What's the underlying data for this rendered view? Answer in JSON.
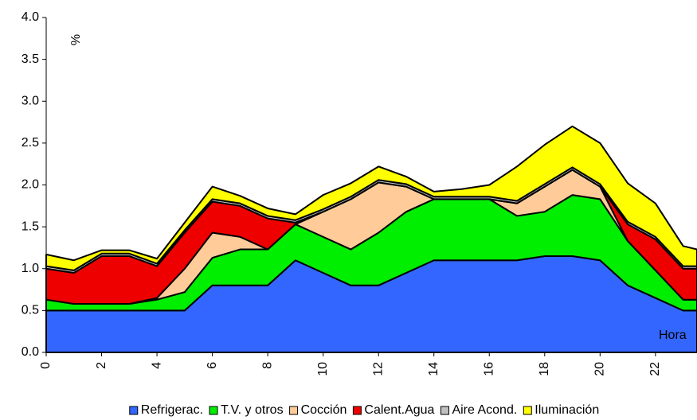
{
  "chart_data": {
    "type": "stacked-area",
    "x": [
      0,
      1,
      2,
      3,
      4,
      5,
      6,
      7,
      8,
      9,
      10,
      11,
      12,
      13,
      14,
      15,
      16,
      17,
      18,
      19,
      20,
      21,
      22,
      23,
      23.5
    ],
    "series": [
      {
        "name": "Refrigerac.",
        "color": "#3366ff",
        "values": [
          0.5,
          0.5,
          0.5,
          0.5,
          0.5,
          0.5,
          0.8,
          0.8,
          0.8,
          1.1,
          0.95,
          0.8,
          0.8,
          0.95,
          1.1,
          1.1,
          1.1,
          1.1,
          1.15,
          1.15,
          1.1,
          0.8,
          0.65,
          0.5,
          0.5
        ]
      },
      {
        "name": "T.V. y otros",
        "color": "#00ee00",
        "values": [
          0.13,
          0.08,
          0.08,
          0.08,
          0.13,
          0.22,
          0.33,
          0.43,
          0.43,
          0.43,
          0.43,
          0.43,
          0.63,
          0.73,
          0.73,
          0.73,
          0.73,
          0.53,
          0.53,
          0.73,
          0.73,
          0.53,
          0.33,
          0.13,
          0.13
        ]
      },
      {
        "name": "Cocción",
        "color": "#ffcc99",
        "values": [
          0,
          0,
          0,
          0,
          0.02,
          0.28,
          0.3,
          0.15,
          0,
          0,
          0.3,
          0.6,
          0.6,
          0.3,
          0,
          0,
          0,
          0.15,
          0.3,
          0.3,
          0.15,
          0,
          0,
          0,
          0
        ]
      },
      {
        "name": "Calent.Agua",
        "color": "#ee0000",
        "values": [
          0.37,
          0.37,
          0.57,
          0.57,
          0.38,
          0.43,
          0.37,
          0.37,
          0.37,
          0.02,
          0,
          0,
          0,
          0,
          0,
          0,
          0,
          0,
          0,
          0,
          0,
          0.2,
          0.37,
          0.37,
          0.37
        ]
      },
      {
        "name": "Aire Acond.",
        "color": "#c0c0c0",
        "values": [
          0.03,
          0.03,
          0.03,
          0.03,
          0.03,
          0.03,
          0.03,
          0.03,
          0.03,
          0.03,
          0.03,
          0.03,
          0.03,
          0.03,
          0.03,
          0.03,
          0.03,
          0.03,
          0.03,
          0.03,
          0.03,
          0.03,
          0.03,
          0.03,
          0.03
        ]
      },
      {
        "name": "Iluminación",
        "color": "#ffff00",
        "values": [
          0.14,
          0.12,
          0.04,
          0.04,
          0.06,
          0.09,
          0.15,
          0.09,
          0.09,
          0.07,
          0.17,
          0.16,
          0.16,
          0.09,
          0.06,
          0.09,
          0.14,
          0.41,
          0.47,
          0.49,
          0.49,
          0.46,
          0.4,
          0.24,
          0.2
        ]
      }
    ],
    "xlim": [
      0,
      23.5
    ],
    "xticks": [
      0,
      2,
      4,
      6,
      8,
      10,
      12,
      14,
      16,
      18,
      20,
      22
    ],
    "ylim": [
      0,
      4
    ],
    "yticks": [
      {
        "value": 0,
        "label": "0.0"
      },
      0.5,
      {
        "value": 1,
        "label": "1.0"
      },
      1.5,
      {
        "value": 2,
        "label": "2.0"
      },
      2.5,
      {
        "value": 3,
        "label": "3.0"
      },
      3.5,
      {
        "value": 4,
        "label": "4.0"
      }
    ],
    "y_unit_label": "%",
    "x_axis_label": "Hora",
    "grid": false,
    "legend": "bottom"
  }
}
